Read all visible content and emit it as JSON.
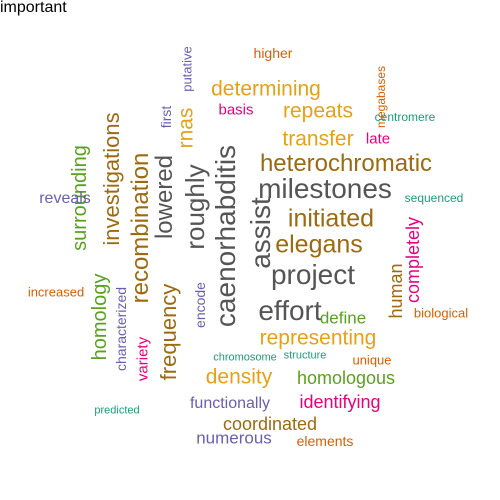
{
  "palette": {
    "gold": "#e6a117",
    "brown": "#9c6a11",
    "grey": "#555555",
    "green": "#5aa120",
    "magenta": "#e7007f",
    "purple": "#6a5fae",
    "orange": "#d95f02",
    "teal": "#1b9e77"
  },
  "words": [
    {
      "text": "milestones",
      "color": "grey",
      "size": 28,
      "vertical": false
    },
    {
      "text": "caenorhabditis",
      "color": "grey",
      "size": 28,
      "vertical": true
    },
    {
      "text": "project",
      "color": "grey",
      "size": 28,
      "vertical": false
    },
    {
      "text": "effort",
      "color": "grey",
      "size": 28,
      "vertical": false
    },
    {
      "text": "assist",
      "color": "grey",
      "size": 28,
      "vertical": true
    },
    {
      "text": "roughly",
      "color": "grey",
      "size": 26,
      "vertical": true
    },
    {
      "text": "lowered",
      "color": "grey",
      "size": 24,
      "vertical": true
    },
    {
      "text": "heterochromatic",
      "color": "brown",
      "size": 24,
      "vertical": false
    },
    {
      "text": "initiated",
      "color": "brown",
      "size": 25,
      "vertical": false
    },
    {
      "text": "elegans",
      "color": "brown",
      "size": 25,
      "vertical": false
    },
    {
      "text": "recombination",
      "color": "brown",
      "size": 24,
      "vertical": true
    },
    {
      "text": "investigations",
      "color": "brown",
      "size": 22,
      "vertical": true
    },
    {
      "text": "frequency",
      "color": "brown",
      "size": 22,
      "vertical": true
    },
    {
      "text": "coordinated",
      "color": "brown",
      "size": 18,
      "vertical": false
    },
    {
      "text": "human",
      "color": "brown",
      "size": 18,
      "vertical": true
    },
    {
      "text": "determining",
      "color": "gold",
      "size": 21,
      "vertical": false
    },
    {
      "text": "repeats",
      "color": "gold",
      "size": 21,
      "vertical": false
    },
    {
      "text": "transfer",
      "color": "gold",
      "size": 21,
      "vertical": false
    },
    {
      "text": "rnas",
      "color": "gold",
      "size": 21,
      "vertical": true
    },
    {
      "text": "representing",
      "color": "gold",
      "size": 21,
      "vertical": false
    },
    {
      "text": "density",
      "color": "gold",
      "size": 21,
      "vertical": false
    },
    {
      "text": "surrounding",
      "color": "green",
      "size": 20,
      "vertical": true
    },
    {
      "text": "homology",
      "color": "green",
      "size": 20,
      "vertical": true
    },
    {
      "text": "homologous",
      "color": "green",
      "size": 18,
      "vertical": false
    },
    {
      "text": "define",
      "color": "green",
      "size": 17,
      "vertical": false
    },
    {
      "text": "identifying",
      "color": "magenta",
      "size": 18,
      "vertical": false
    },
    {
      "text": "completely",
      "color": "magenta",
      "size": 18,
      "vertical": true
    },
    {
      "text": "variety",
      "color": "magenta",
      "size": 15,
      "vertical": true
    },
    {
      "text": "basis",
      "color": "magenta",
      "size": 15,
      "vertical": false
    },
    {
      "text": "late",
      "color": "magenta",
      "size": 15,
      "vertical": false
    },
    {
      "text": "numerous",
      "color": "purple",
      "size": 17,
      "vertical": false
    },
    {
      "text": "functionally",
      "color": "purple",
      "size": 16,
      "vertical": false
    },
    {
      "text": "reveals",
      "color": "purple",
      "size": 16,
      "vertical": false
    },
    {
      "text": "characterized",
      "color": "purple",
      "size": 14,
      "vertical": true
    },
    {
      "text": "encode",
      "color": "purple",
      "size": 14,
      "vertical": true
    },
    {
      "text": "first",
      "color": "purple",
      "size": 14,
      "vertical": true
    },
    {
      "text": "putative",
      "color": "purple",
      "size": 13,
      "vertical": true
    },
    {
      "text": "higher",
      "color": "orange",
      "size": 14,
      "vertical": false
    },
    {
      "text": "increased",
      "color": "orange",
      "size": 13,
      "vertical": false
    },
    {
      "text": "unique",
      "color": "orange",
      "size": 13,
      "vertical": false
    },
    {
      "text": "elements",
      "color": "orange",
      "size": 14,
      "vertical": false
    },
    {
      "text": "biological",
      "color": "orange",
      "size": 13,
      "vertical": false
    },
    {
      "text": "megabases",
      "color": "orange",
      "size": 12,
      "vertical": true
    },
    {
      "text": "centromere",
      "color": "teal",
      "size": 12,
      "vertical": false
    },
    {
      "text": "sequenced",
      "color": "teal",
      "size": 12,
      "vertical": false
    },
    {
      "text": "predicted",
      "color": "teal",
      "size": 11,
      "vertical": false
    },
    {
      "text": "chromosome",
      "color": "teal",
      "size": 11,
      "vertical": false
    },
    {
      "text": "structure",
      "color": "teal",
      "size": 11,
      "vertical": false
    },
    {
      "text": "important",
      "color": "teal",
      "size": 11,
      "vertical": false
    }
  ]
}
